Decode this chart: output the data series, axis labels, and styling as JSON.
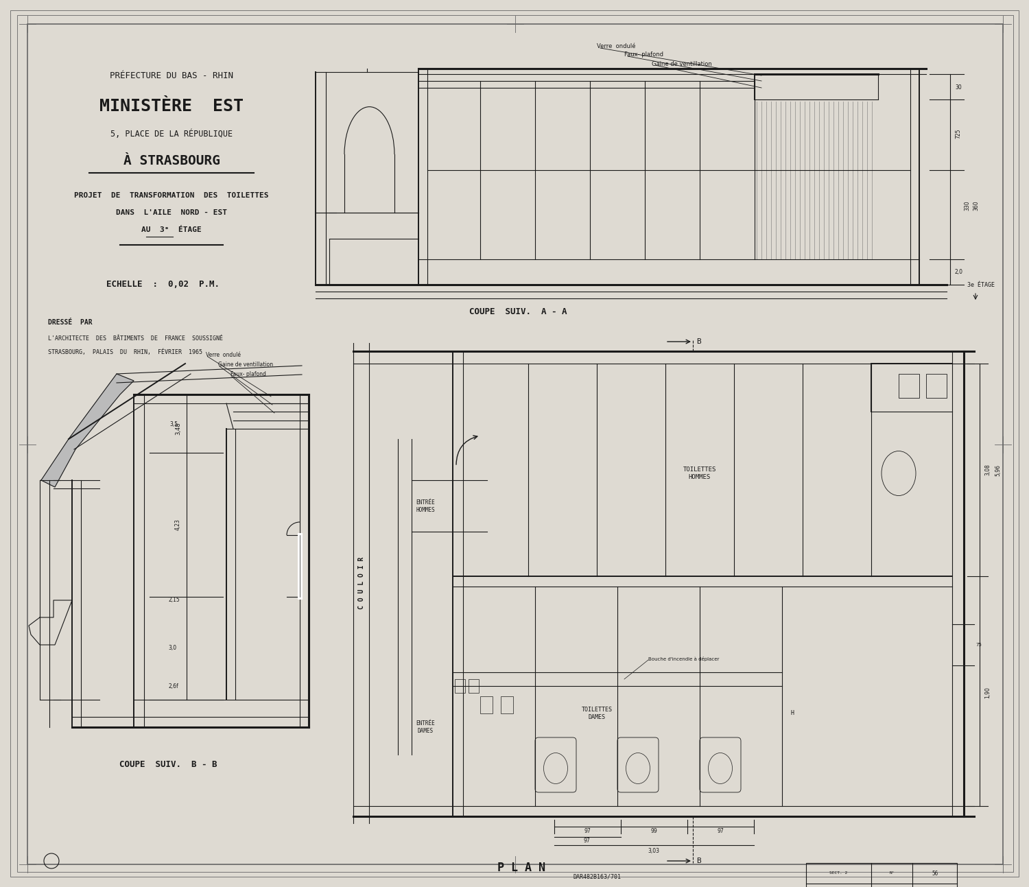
{
  "bg_color": "#c8c5bc",
  "paper_color": "#dedad2",
  "ink_color": "#1a1a1a",
  "light_ink": "#666666",
  "title_line1": "PRÉFECTURE DU BAS - RHIN",
  "title_line2": "MINISTÈRE  EST",
  "title_line3": "5, PLACE DE LA RÉPUBLIQUE",
  "title_line4": "À STRASBOURG",
  "title_line5": "PROJET  DE  TRANSFORMATION  DES  TOILETTES",
  "title_line6": "DANS  L'AILE  NORD - EST",
  "title_line7": "AU  3ᵉ  ÉTAGE",
  "echelle": "ECHELLE  :  0,02  P.M.",
  "dresse_par": "DRESSÉ  PAR",
  "dresse_line2": "L'ARCHITECTE  DES  BÂTIMENTS  DE  FRANCE  SOUSSIGNÉ",
  "dresse_line3": "STRASBOURG,  PALAIS  DU  RHIN,  FÉVRIER  1965",
  "coupe_aa": "COUPE  SUIV.  A - A",
  "coupe_bb": "COUPE  SUIV.  B - B",
  "plan_label": "P L A N",
  "ref_label": "DAR482B163/701",
  "coupe_aa_labels": [
    "Verre  ondulé",
    "Faux- plafond",
    "Gaine de ventillation"
  ],
  "coupe_bb_labels": [
    "Verre  ondulé",
    "Gaine de ventillation",
    "Faux- plafond"
  ]
}
